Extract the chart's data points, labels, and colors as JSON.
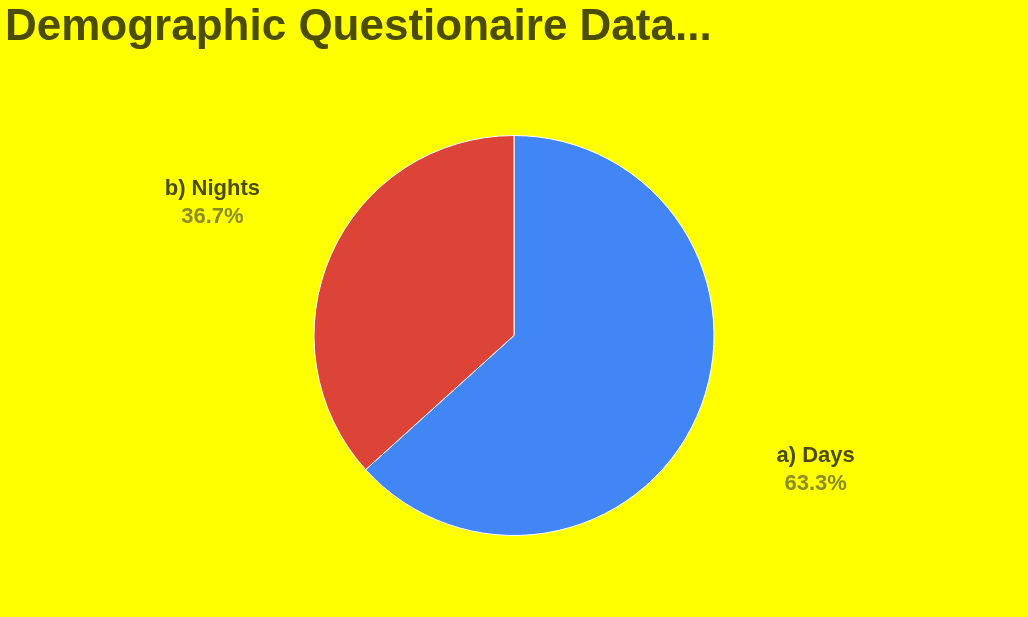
{
  "chart_data": {
    "type": "pie",
    "title": "Demographic Questionaire Data...",
    "categories": [
      "a) Days",
      "b) Nights"
    ],
    "values": [
      63.3,
      36.7
    ],
    "colors": [
      "#4285f4",
      "#db4437"
    ],
    "value_labels": [
      "63.3%",
      "36.7%"
    ],
    "legend": false
  }
}
